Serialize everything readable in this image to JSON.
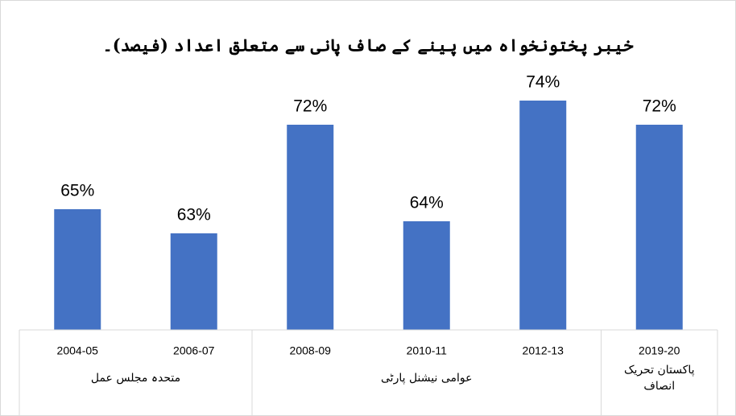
{
  "chart_data": {
    "type": "bar",
    "title": "خیبر پختونخواہ میں پینے کے صاف پانی سے متعلق اعداد (فیصد)۔",
    "categories": [
      "2004-05",
      "2006-07",
      "2008-09",
      "2010-11",
      "2012-13",
      "2019-20"
    ],
    "values": [
      65,
      63,
      72,
      64,
      74,
      72
    ],
    "value_labels": [
      "65%",
      "63%",
      "72%",
      "64%",
      "74%",
      "72%"
    ],
    "groups": [
      {
        "label": [
          "متحدہ مجلس عمل"
        ],
        "count": 2
      },
      {
        "label": [
          "عوامی نیشنل پارٹی"
        ],
        "count": 3
      },
      {
        "label": [
          "پاکستان تحریک",
          "انصاف"
        ],
        "count": 1
      }
    ],
    "color": "#4472c4",
    "ylim": [
      55,
      78
    ]
  }
}
